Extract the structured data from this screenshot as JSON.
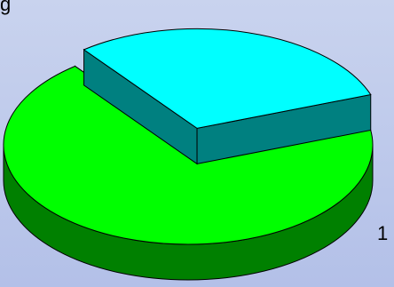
{
  "chart_data": {
    "type": "pie",
    "title": "",
    "slices": [
      {
        "label": "",
        "value": 70,
        "color": "#00ff00",
        "side_color": "#008000",
        "exploded": false
      },
      {
        "label": "",
        "value": 30,
        "color": "#00ffff",
        "side_color": "#008080",
        "exploded": true
      }
    ],
    "visible_label_fragments": [
      "g",
      "1"
    ],
    "three_d": true,
    "legend": "none"
  }
}
